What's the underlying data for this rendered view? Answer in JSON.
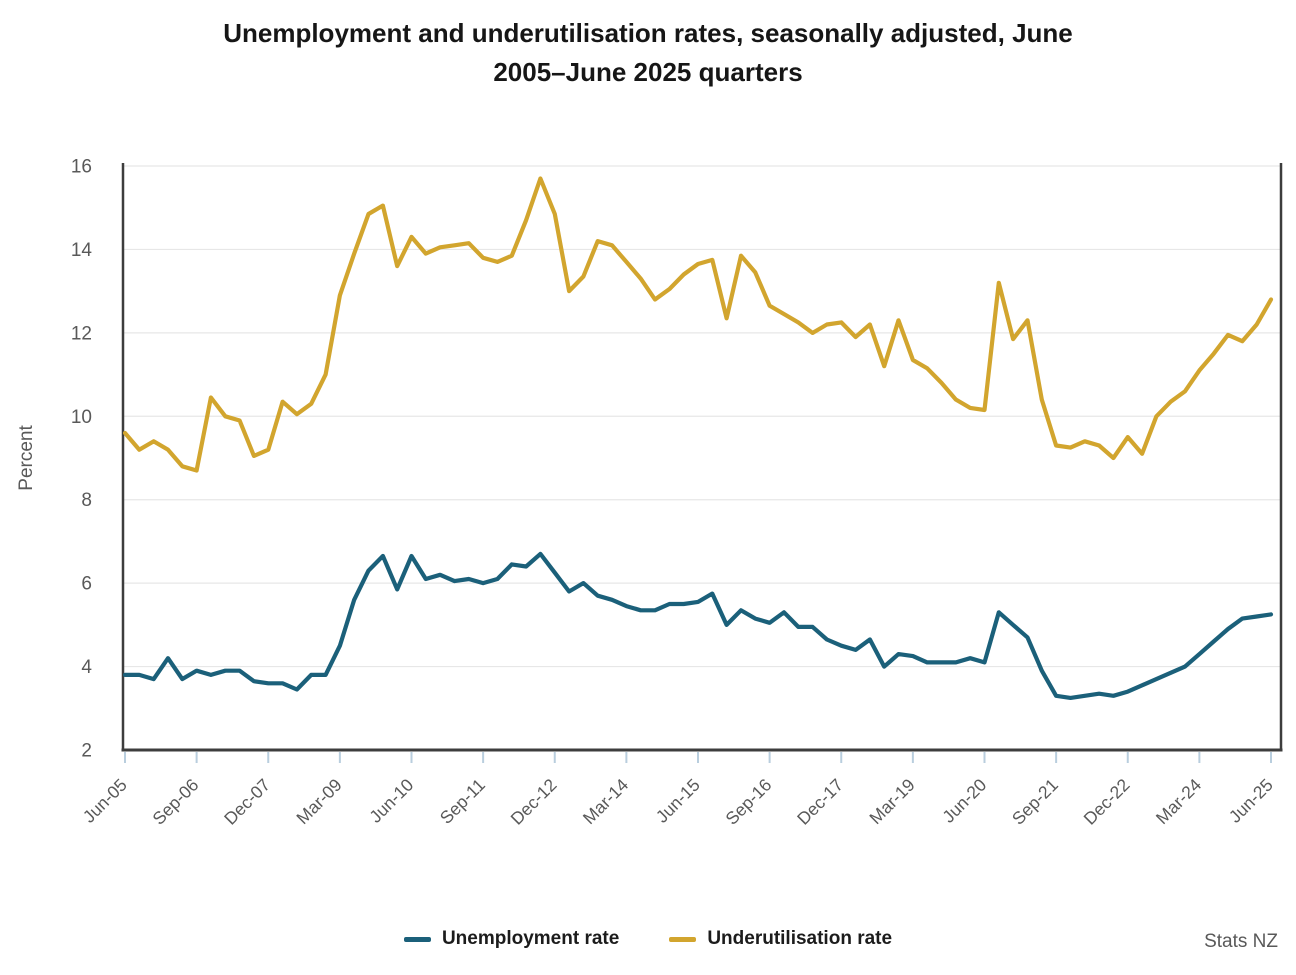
{
  "page": {
    "title_lines": [
      "Unemployment and underutilisation rates, seasonally adjusted, June",
      "2005–June 2025 quarters"
    ],
    "source": "Stats NZ"
  },
  "colors": {
    "unemployment": "#1b607a",
    "underutilisation": "#d2a52e",
    "axis": "#3d3d3d",
    "grid": "#e7e7e7",
    "tick_mark": "#b9cede",
    "axis_label": "#595959",
    "title_text": "#161616"
  },
  "legend": {
    "items": [
      {
        "label": "Unemployment rate",
        "color": "#1b607a"
      },
      {
        "label": "Underutilisation rate",
        "color": "#d2a52e"
      }
    ]
  },
  "chart_data": {
    "type": "line",
    "title": "Unemployment and underutilisation rates, seasonally adjusted, June 2005–June 2025 quarters",
    "xlabel": "",
    "ylabel": "Percent",
    "ylim": [
      2,
      16
    ],
    "yticks": [
      2,
      4,
      6,
      8,
      10,
      12,
      14,
      16
    ],
    "grid": true,
    "legend_position": "bottom",
    "x_unit": "quarter",
    "x_range": [
      "Jun-05",
      "Jun-25"
    ],
    "n_points": 81,
    "x_tick_every_n_points": 5,
    "x_tick_labels": [
      "Jun-05",
      "Sep-06",
      "Dec-07",
      "Mar-09",
      "Jun-10",
      "Sep-11",
      "Dec-12",
      "Mar-14",
      "Jun-15",
      "Sep-16",
      "Dec-17",
      "Mar-19",
      "Jun-20",
      "Sep-21",
      "Dec-22",
      "Mar-24",
      "Jun-25"
    ],
    "series": [
      {
        "name": "Unemployment rate",
        "color": "#1b607a",
        "values": [
          3.8,
          3.8,
          3.7,
          4.2,
          3.7,
          3.9,
          3.8,
          3.9,
          3.9,
          3.65,
          3.6,
          3.6,
          3.45,
          3.8,
          3.8,
          4.5,
          5.6,
          6.3,
          6.65,
          5.85,
          6.65,
          6.1,
          6.2,
          6.05,
          6.1,
          6.0,
          6.1,
          6.45,
          6.4,
          6.7,
          6.25,
          5.8,
          6.0,
          5.7,
          5.6,
          5.45,
          5.35,
          5.35,
          5.5,
          5.5,
          5.55,
          5.75,
          5.0,
          5.35,
          5.15,
          5.05,
          5.3,
          4.95,
          4.95,
          4.65,
          4.5,
          4.4,
          4.65,
          4.0,
          4.3,
          4.25,
          4.1,
          4.1,
          4.1,
          4.2,
          4.1,
          5.3,
          5.0,
          4.7,
          3.9,
          3.3,
          3.25,
          3.3,
          3.35,
          3.3,
          3.4,
          3.55,
          3.7,
          3.85,
          4.0,
          4.3,
          4.6,
          4.9,
          5.15,
          5.2,
          5.25
        ]
      },
      {
        "name": "Underutilisation rate",
        "color": "#d2a52e",
        "values": [
          9.6,
          9.2,
          9.4,
          9.2,
          8.8,
          8.7,
          10.45,
          10.0,
          9.9,
          9.05,
          9.2,
          10.35,
          10.05,
          10.3,
          11.0,
          12.9,
          13.9,
          14.85,
          15.05,
          13.6,
          14.3,
          13.9,
          14.05,
          14.1,
          14.15,
          13.8,
          13.7,
          13.85,
          14.7,
          15.7,
          14.85,
          13.0,
          13.35,
          14.2,
          14.1,
          13.7,
          13.3,
          12.8,
          13.05,
          13.4,
          13.65,
          13.75,
          12.35,
          13.85,
          13.45,
          12.65,
          12.45,
          12.25,
          12.0,
          12.2,
          12.25,
          11.9,
          12.2,
          11.2,
          12.3,
          11.35,
          11.15,
          10.8,
          10.4,
          10.2,
          10.15,
          13.2,
          11.85,
          12.3,
          10.4,
          9.3,
          9.25,
          9.4,
          9.3,
          9.0,
          9.5,
          9.1,
          10.0,
          10.35,
          10.6,
          11.1,
          11.5,
          11.95,
          11.8,
          12.2,
          12.8
        ]
      }
    ]
  }
}
